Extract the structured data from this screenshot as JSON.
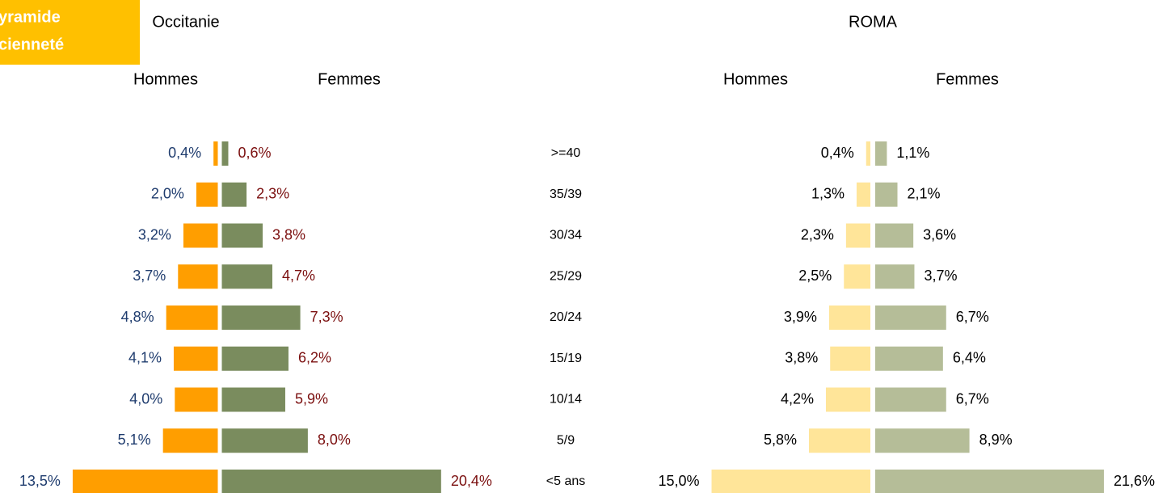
{
  "chart_data": {
    "type": "pyramid",
    "header": [
      "yramide",
      "cienneté"
    ],
    "header_color": "#ffc000",
    "categories": [
      ">=40",
      "35/39",
      "30/34",
      "25/29",
      "20/24",
      "15/19",
      "10/14",
      "5/9",
      "<5 ans"
    ],
    "panels": [
      {
        "title": "Occitanie",
        "series": [
          {
            "name": "Hommes",
            "color": "#ff9e00",
            "label_color": "#1f3c6e",
            "values": [
              0.4,
              2.0,
              3.2,
              3.7,
              4.8,
              4.1,
              4.0,
              5.1,
              13.5
            ],
            "value_labels": [
              "0,4%",
              "2,0%",
              "3,2%",
              "3,7%",
              "4,8%",
              "4,1%",
              "4,0%",
              "5,1%",
              "13,5%"
            ]
          },
          {
            "name": "Femmes",
            "color": "#7a8c5e",
            "label_color": "#7b0f0f",
            "values": [
              0.6,
              2.3,
              3.8,
              4.7,
              7.3,
              6.2,
              5.9,
              8.0,
              20.4
            ],
            "value_labels": [
              "0,6%",
              "2,3%",
              "3,8%",
              "4,7%",
              "7,3%",
              "6,2%",
              "5,9%",
              "8,0%",
              "20,4%"
            ]
          }
        ]
      },
      {
        "title": "ROMA",
        "series": [
          {
            "name": "Hommes",
            "color": "#ffe599",
            "label_color": "#000000",
            "values": [
              0.4,
              1.3,
              2.3,
              2.5,
              3.9,
              3.8,
              4.2,
              5.8,
              15.0
            ],
            "value_labels": [
              "0,4%",
              "1,3%",
              "2,3%",
              "2,5%",
              "3,9%",
              "3,8%",
              "4,2%",
              "5,8%",
              "15,0%"
            ]
          },
          {
            "name": "Femmes",
            "color": "#b5bd98",
            "label_color": "#000000",
            "values": [
              1.1,
              2.1,
              3.6,
              3.7,
              6.7,
              6.4,
              6.7,
              8.9,
              21.6
            ],
            "value_labels": [
              "1,1%",
              "2,1%",
              "3,6%",
              "3,7%",
              "6,7%",
              "6,4%",
              "6,7%",
              "8,9%",
              "21,6%"
            ]
          }
        ]
      }
    ]
  }
}
